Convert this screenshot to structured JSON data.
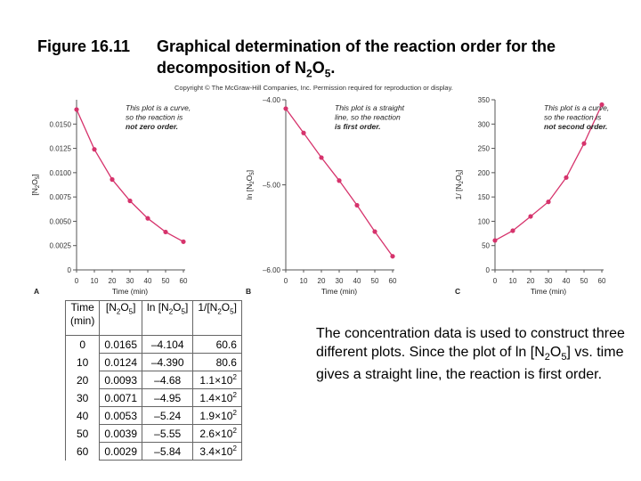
{
  "header": {
    "number": "Figure 16.11",
    "title_line1": "Graphical determination of the reaction order for the",
    "title_line2_prefix": "decomposition of N",
    "title_sub1": "2",
    "title_mid": "O",
    "title_sub2": "5",
    "title_end": "."
  },
  "copyright": "Copyright © The McGraw-Hill Companies, Inc. Permission required for reproduction or display.",
  "chart_data": [
    {
      "type": "line",
      "panel": "A",
      "xlabel": "Time (min)",
      "ylabel": "[N2O5]",
      "ylabel_parts": [
        "[N",
        "2",
        "O",
        "5",
        "]"
      ],
      "x": [
        0,
        10,
        20,
        30,
        40,
        50,
        60
      ],
      "xticks": [
        "0",
        "10",
        "20",
        "30",
        "40",
        "50",
        "60"
      ],
      "xlim": [
        0,
        60
      ],
      "ylim": [
        0,
        0.0175
      ],
      "yticks": [
        {
          "value": 0,
          "label": "0"
        },
        {
          "value": 0.0025,
          "label": "0.0025"
        },
        {
          "value": 0.005,
          "label": "0.0050"
        },
        {
          "value": 0.0075,
          "label": "0.0075"
        },
        {
          "value": 0.01,
          "label": "0.0100"
        },
        {
          "value": 0.0125,
          "label": "0.0125"
        },
        {
          "value": 0.015,
          "label": "0.0150"
        }
      ],
      "series": [
        {
          "values": [
            0.0165,
            0.0124,
            0.0093,
            0.0071,
            0.0053,
            0.0039,
            0.0029
          ]
        }
      ],
      "note": [
        "This plot is a curve,",
        "so the reaction is",
        "not zero order."
      ],
      "color": "#d6336c"
    },
    {
      "type": "line",
      "panel": "B",
      "xlabel": "Time (min)",
      "ylabel": "ln [N2O5]",
      "ylabel_parts": [
        "ln [N",
        "2",
        "O",
        "5",
        "]"
      ],
      "x": [
        0,
        10,
        20,
        30,
        40,
        50,
        60
      ],
      "xticks": [
        "0",
        "10",
        "20",
        "30",
        "40",
        "50",
        "60"
      ],
      "xlim": [
        0,
        60
      ],
      "ylim": [
        -6.0,
        -4.0
      ],
      "yticks": [
        {
          "value": -4.0,
          "label": "–4.00"
        },
        {
          "value": -5.0,
          "label": "–5.00"
        },
        {
          "value": -6.0,
          "label": "–6.00"
        }
      ],
      "series": [
        {
          "values": [
            -4.104,
            -4.39,
            -4.68,
            -4.95,
            -5.24,
            -5.55,
            -5.84
          ]
        }
      ],
      "note": [
        "This plot is a straight",
        "line, so the reaction",
        "is first order."
      ],
      "color": "#d6336c"
    },
    {
      "type": "line",
      "panel": "C",
      "xlabel": "Time (min)",
      "ylabel": "1/ [N2O5]",
      "ylabel_parts": [
        "1/ [N",
        "2",
        "O",
        "5",
        "]"
      ],
      "x": [
        0,
        10,
        20,
        30,
        40,
        50,
        60
      ],
      "xticks": [
        "0",
        "10",
        "20",
        "30",
        "40",
        "50",
        "60"
      ],
      "xlim": [
        0,
        60
      ],
      "ylim": [
        0,
        350
      ],
      "yticks": [
        {
          "value": 0,
          "label": "0"
        },
        {
          "value": 50,
          "label": "50"
        },
        {
          "value": 100,
          "label": "100"
        },
        {
          "value": 150,
          "label": "150"
        },
        {
          "value": 200,
          "label": "200"
        },
        {
          "value": 250,
          "label": "250"
        },
        {
          "value": 300,
          "label": "300"
        },
        {
          "value": 350,
          "label": "350"
        }
      ],
      "series": [
        {
          "values": [
            60.6,
            80.6,
            110,
            140,
            190,
            260,
            340
          ]
        }
      ],
      "note": [
        "This plot is a curve,",
        "so the reaction is",
        "not second order."
      ],
      "color": "#d6336c"
    }
  ],
  "table": {
    "headers": [
      {
        "pre": "Time",
        "line2": "(min)"
      },
      {
        "pre": "[N",
        "sub1": "2",
        "mid": "O",
        "sub2": "5",
        "post": "]"
      },
      {
        "pre": "ln [N",
        "sub1": "2",
        "mid": "O",
        "sub2": "5",
        "post": "]"
      },
      {
        "pre": "1/[N",
        "sub1": "2",
        "mid": "O",
        "sub2": "5",
        "post": "]"
      }
    ],
    "rows": [
      {
        "time": "0",
        "conc": "0.0165",
        "ln": "–4.104",
        "inv": "60.6",
        "inv_exp": ""
      },
      {
        "time": "10",
        "conc": "0.0124",
        "ln": "–4.390",
        "inv": "80.6",
        "inv_exp": ""
      },
      {
        "time": "20",
        "conc": "0.0093",
        "ln": "–4.68",
        "inv": "1.1×10",
        "inv_exp": "2"
      },
      {
        "time": "30",
        "conc": "0.0071",
        "ln": "–4.95",
        "inv": "1.4×10",
        "inv_exp": "2"
      },
      {
        "time": "40",
        "conc": "0.0053",
        "ln": "–5.24",
        "inv": "1.9×10",
        "inv_exp": "2"
      },
      {
        "time": "50",
        "conc": "0.0039",
        "ln": "–5.55",
        "inv": "2.6×10",
        "inv_exp": "2"
      },
      {
        "time": "60",
        "conc": "0.0029",
        "ln": "–5.84",
        "inv": "3.4×10",
        "inv_exp": "2"
      }
    ]
  },
  "description": {
    "part1": "The concentration data is used to construct three different plots. Since the plot of ln [N",
    "sub1": "2",
    "mid": "O",
    "sub2": "5",
    "part2": "] vs. time gives a straight line, the reaction is first order."
  }
}
